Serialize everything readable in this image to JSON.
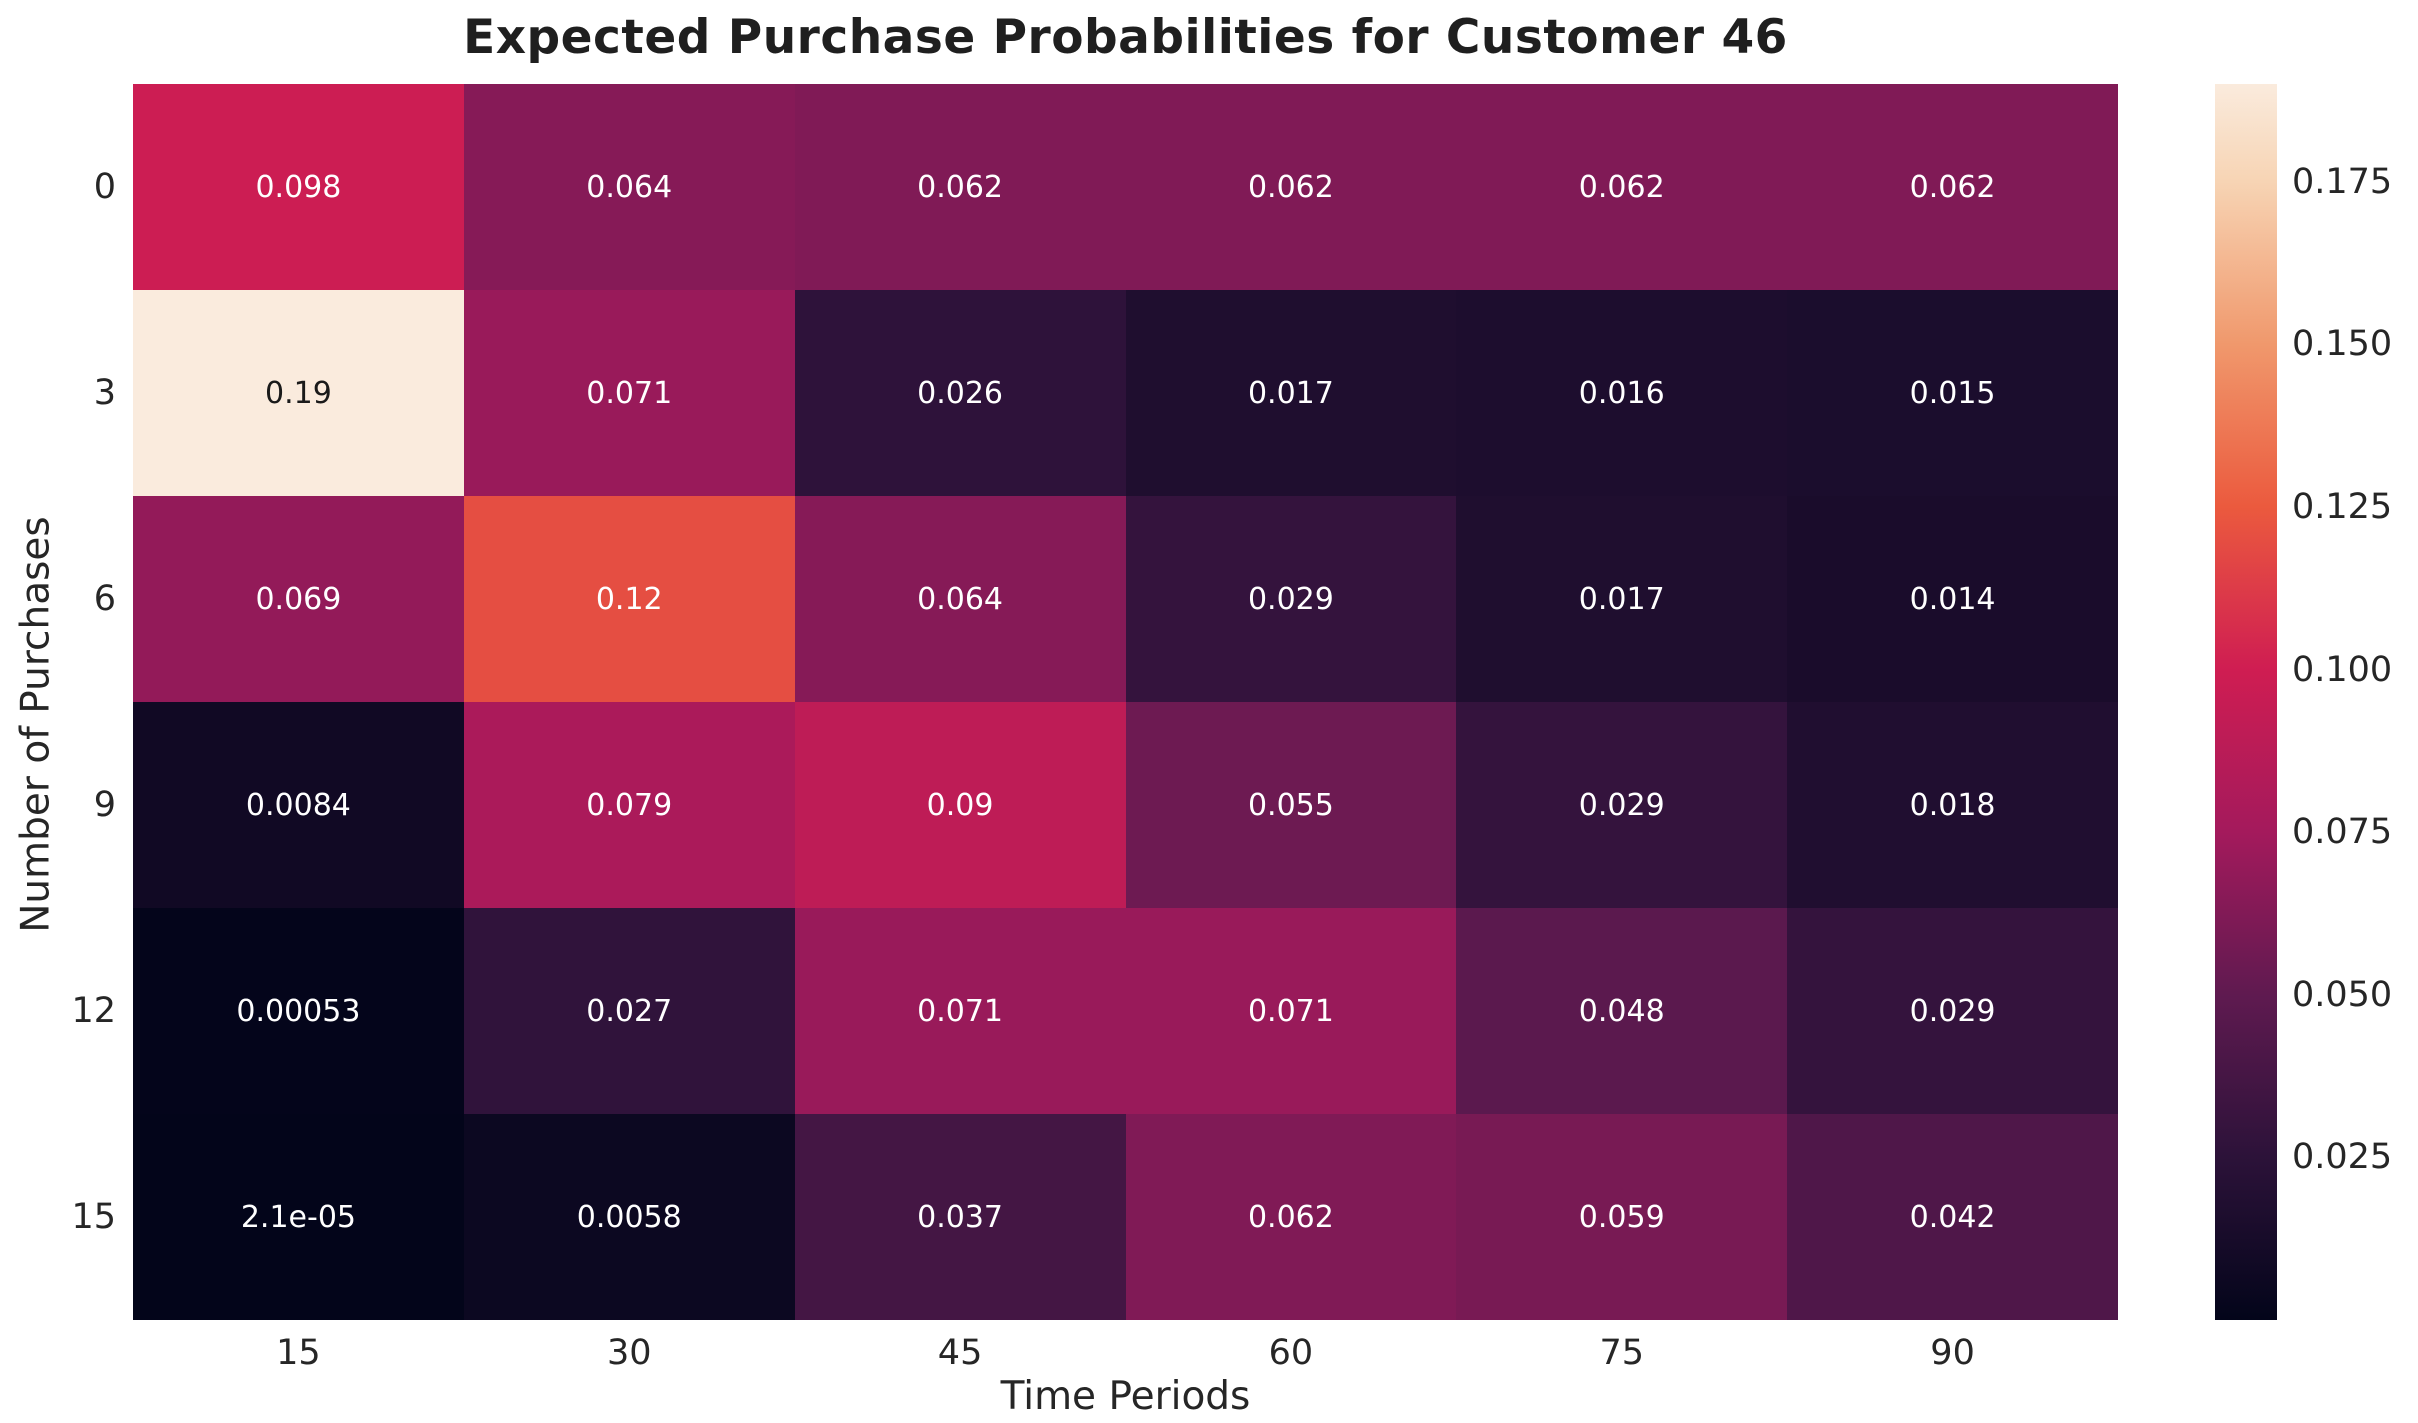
{
  "chart_data": {
    "type": "heatmap",
    "title": "Expected Purchase Probabilities for Customer 46",
    "xlabel": "Time Periods",
    "ylabel": "Number of Purchases",
    "x_categories": [
      "15",
      "30",
      "45",
      "60",
      "75",
      "90"
    ],
    "y_categories": [
      "0",
      "3",
      "6",
      "9",
      "12",
      "15"
    ],
    "values": [
      [
        0.098,
        0.064,
        0.062,
        0.062,
        0.062,
        0.062
      ],
      [
        0.19,
        0.071,
        0.026,
        0.017,
        0.016,
        0.015
      ],
      [
        0.069,
        0.12,
        0.064,
        0.029,
        0.017,
        0.014
      ],
      [
        0.0084,
        0.079,
        0.09,
        0.055,
        0.029,
        0.018
      ],
      [
        0.00053,
        0.027,
        0.071,
        0.071,
        0.048,
        0.029
      ],
      [
        2.1e-05,
        0.0058,
        0.037,
        0.062,
        0.059,
        0.042
      ]
    ],
    "annotations": [
      [
        "0.098",
        "0.064",
        "0.062",
        "0.062",
        "0.062",
        "0.062"
      ],
      [
        "0.19",
        "0.071",
        "0.026",
        "0.017",
        "0.016",
        "0.015"
      ],
      [
        "0.069",
        "0.12",
        "0.064",
        "0.029",
        "0.017",
        "0.014"
      ],
      [
        "0.0084",
        "0.079",
        "0.09",
        "0.055",
        "0.029",
        "0.018"
      ],
      [
        "0.00053",
        "0.027",
        "0.071",
        "0.071",
        "0.048",
        "0.029"
      ],
      [
        "2.1e-05",
        "0.0058",
        "0.037",
        "0.062",
        "0.059",
        "0.042"
      ]
    ],
    "colormap": "rocket",
    "vmin": 2.1e-05,
    "vmax": 0.19,
    "colormap_stops": [
      [
        0.0,
        "#03051A"
      ],
      [
        0.132,
        "#2C1239"
      ],
      [
        0.263,
        "#5F1A50"
      ],
      [
        0.395,
        "#A41A5C"
      ],
      [
        0.526,
        "#CF1D52"
      ],
      [
        0.658,
        "#EB5A3E"
      ],
      [
        0.789,
        "#F0986C"
      ],
      [
        0.921,
        "#F7D4B4"
      ],
      [
        1.0,
        "#FAEBDD"
      ]
    ],
    "colorbar": {
      "tick_labels": [
        "0.175",
        "0.150",
        "0.125",
        "0.100",
        "0.075",
        "0.050",
        "0.025"
      ],
      "tick_values": [
        0.175,
        0.15,
        0.125,
        0.1,
        0.075,
        0.05,
        0.025
      ]
    },
    "colors": {
      "annotation_light": "#ffffff",
      "annotation_dark": "#1a1a1a",
      "axis_text": "#262626",
      "background": "#ffffff"
    },
    "layout": {
      "grid": false,
      "legend_position": "none",
      "colorbar_position": "right"
    }
  }
}
